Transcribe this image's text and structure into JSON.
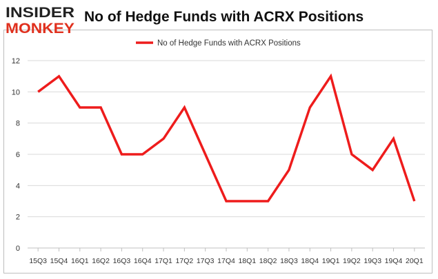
{
  "logo": {
    "line1": "INSIDER",
    "line2": "MONKEY"
  },
  "title": "No of Hedge Funds with ACRX Positions",
  "colors": {
    "series": "#ee1c1c",
    "logo_dark": "#222222",
    "logo_accent": "#e0301e",
    "grid": "#d9d9d9",
    "axis": "#bfbfbf",
    "text": "#333333"
  },
  "chart_data": {
    "type": "line",
    "title": "No of Hedge Funds with ACRX Positions",
    "xlabel": "",
    "ylabel": "",
    "categories": [
      "15Q3",
      "15Q4",
      "16Q1",
      "16Q2",
      "16Q3",
      "16Q4",
      "17Q1",
      "17Q2",
      "17Q3",
      "17Q4",
      "18Q1",
      "18Q2",
      "18Q3",
      "18Q4",
      "19Q1",
      "19Q2",
      "19Q3",
      "19Q4",
      "20Q1"
    ],
    "series": [
      {
        "name": "No of Hedge Funds with ACRX Positions",
        "values": [
          10,
          11,
          9,
          9,
          6,
          6,
          7,
          9,
          6,
          3,
          3,
          3,
          5,
          9,
          11,
          6,
          5,
          7,
          3
        ]
      }
    ],
    "ylim": [
      0,
      12
    ],
    "yticks": [
      0,
      2,
      4,
      6,
      8,
      10,
      12
    ],
    "grid": "horizontal",
    "legend_position": "top-center"
  }
}
